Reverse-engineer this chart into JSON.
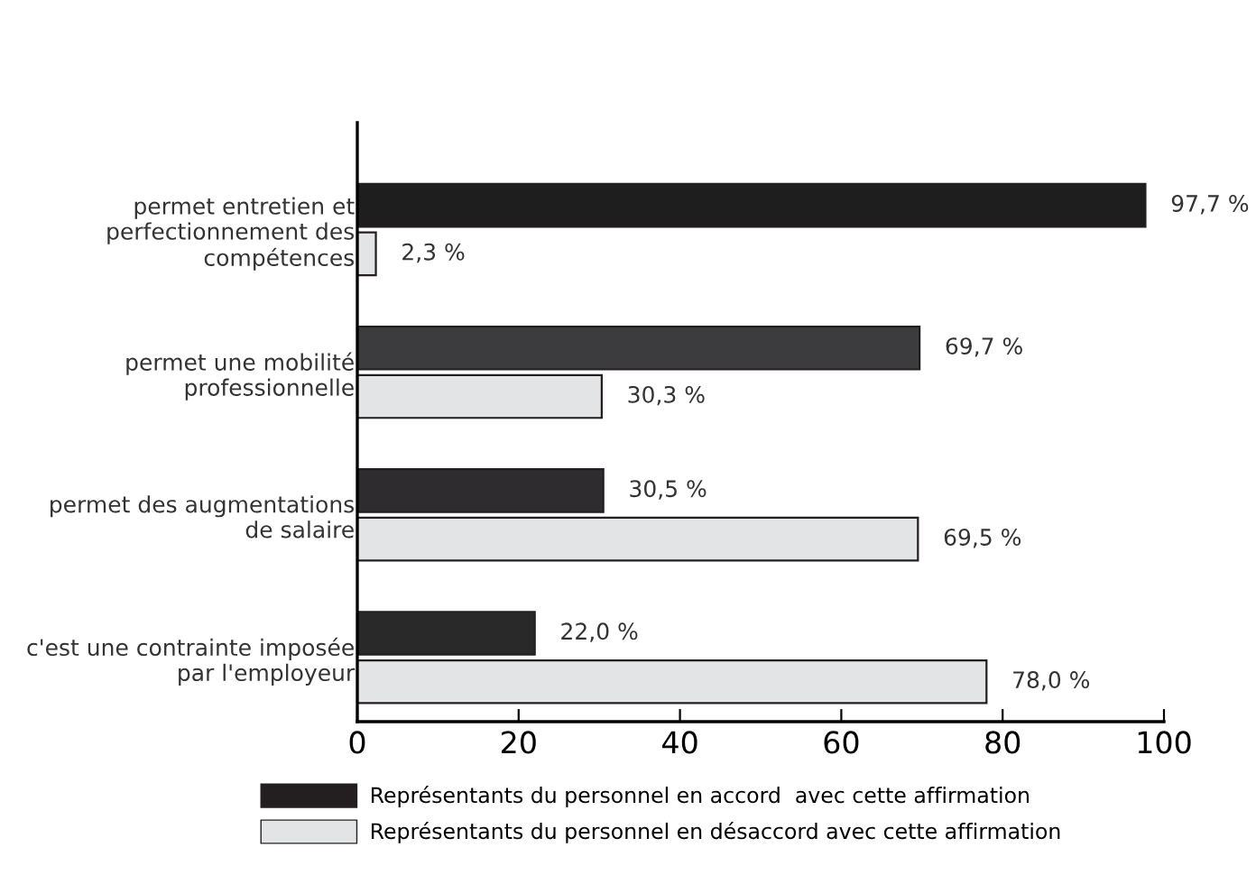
{
  "chart_data": {
    "type": "bar",
    "orientation": "horizontal",
    "categories": [
      "permet entretien et\nperfectionnement des\ncompétences",
      "permet une mobilité\nprofessionnelle",
      "permet des augmentations\nde salaire",
      "c'est une contrainte imposée\npar l'employeur"
    ],
    "series": [
      {
        "name": "Représentants du personnel en accord  avec cette affirmation",
        "color": "#231f20",
        "colors": [
          "#1f1e1e",
          "#3c3b3d",
          "#2e2c2f",
          "#2a292a"
        ],
        "values": [
          97.7,
          69.7,
          30.5,
          22.0
        ],
        "value_labels": [
          "97,7 %",
          "69,7 %",
          "30,5 %",
          "22,0 %"
        ]
      },
      {
        "name": "Représentants du personnel en désaccord avec cette affirmation",
        "color": "#e3e4e5",
        "values": [
          2.3,
          30.3,
          69.5,
          78.0
        ],
        "value_labels": [
          "2,3 %",
          "30,3 %",
          "69,5 %",
          "78,0 %"
        ]
      }
    ],
    "xlim": [
      0,
      100
    ],
    "xticks": [
      0,
      20,
      40,
      60,
      80,
      100
    ],
    "grid": false,
    "legend": "bottom"
  }
}
